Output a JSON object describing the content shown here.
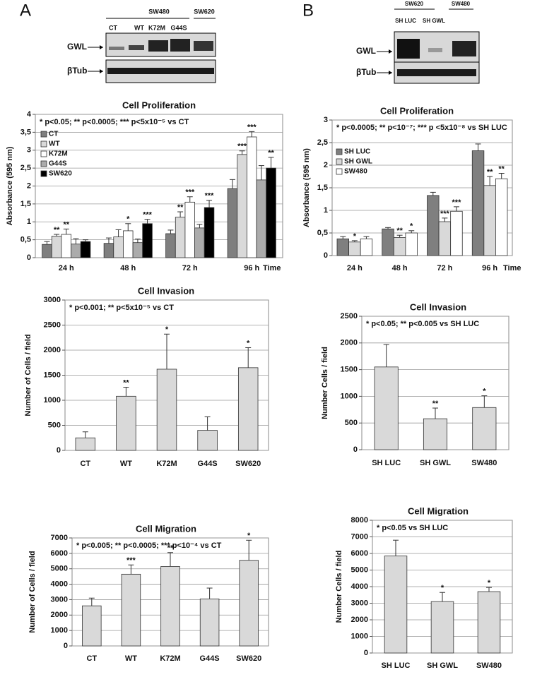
{
  "panels": [
    "A",
    "B"
  ],
  "blots": [
    {
      "groups": [
        "SW480",
        "SW620"
      ],
      "lanes": [
        "CT",
        "WT",
        "K72M",
        "G44S"
      ],
      "rows": [
        "GWL",
        "βTub"
      ]
    },
    {
      "groups": [
        "SW620",
        "SW480"
      ],
      "lanes": [
        "SH LUC",
        "SH GWL"
      ],
      "rows": [
        "GWL",
        "βTub"
      ]
    }
  ],
  "chart_data": [
    {
      "type": "bar",
      "title": "Cell Proliferation",
      "annotation": "* p<0.05; ** p<0.0005; *** p<5x10⁻⁵ vs  CT",
      "y_label": "Absorbance (595 nm)",
      "x_end_label": "Time",
      "categories": [
        "24 h",
        "48 h",
        "72 h",
        "96 h"
      ],
      "series": [
        {
          "name": "CT",
          "color": "#7f7f7f",
          "values": [
            0.37,
            0.4,
            0.67,
            1.93
          ],
          "errors": [
            0.08,
            0.15,
            0.1,
            0.25
          ],
          "sig": [
            null,
            null,
            null,
            null
          ]
        },
        {
          "name": "WT",
          "color": "#d9d9d9",
          "values": [
            0.6,
            0.58,
            1.13,
            2.88
          ],
          "errors": [
            0.05,
            0.2,
            0.15,
            0.1
          ],
          "sig": [
            "**",
            null,
            "**",
            "***"
          ]
        },
        {
          "name": "K72M",
          "color": "#ffffff",
          "values": [
            0.65,
            0.75,
            1.55,
            3.37
          ],
          "errors": [
            0.15,
            0.2,
            0.15,
            0.15
          ],
          "sig": [
            "**",
            "*",
            "***",
            "***"
          ]
        },
        {
          "name": "G44S",
          "color": "#ababab",
          "values": [
            0.38,
            0.42,
            0.83,
            2.17
          ],
          "errors": [
            0.15,
            0.1,
            0.1,
            0.4
          ],
          "sig": [
            null,
            null,
            null,
            null
          ]
        },
        {
          "name": "SW620",
          "color": "#000000",
          "values": [
            0.45,
            0.95,
            1.4,
            2.5
          ],
          "errors": [
            0.05,
            0.12,
            0.2,
            0.3
          ],
          "sig": [
            null,
            "***",
            "***",
            "**"
          ]
        }
      ],
      "ylim": [
        0,
        4
      ],
      "yticks": [
        0,
        {
          "value": 0.5,
          "label": "0,5"
        },
        1,
        {
          "value": 1.5,
          "label": "1,5"
        },
        2,
        {
          "value": 2.5,
          "label": "2,5"
        },
        3,
        {
          "value": 3.5,
          "label": "3,5"
        },
        4
      ],
      "grid": true,
      "legend": "upper left"
    },
    {
      "type": "bar",
      "title": "Cell Proliferation",
      "annotation": "* p<0.0005; ** p<10⁻⁷; *** p <5x10⁻⁸ vs  SH LUC",
      "y_label": "Absorbance (595 nm)",
      "x_end_label": "Time",
      "categories": [
        "24 h",
        "48 h",
        "72 h",
        "96 h"
      ],
      "series": [
        {
          "name": "SH LUC",
          "color": "#7f7f7f",
          "values": [
            0.37,
            0.59,
            1.33,
            2.32
          ],
          "errors": [
            0.05,
            0.03,
            0.07,
            0.15
          ],
          "sig": [
            null,
            null,
            null,
            null
          ]
        },
        {
          "name": "SH GWL",
          "color": "#d9d9d9",
          "values": [
            0.3,
            0.4,
            0.75,
            1.55
          ],
          "errors": [
            0.03,
            0.05,
            0.08,
            0.2
          ],
          "sig": [
            "*",
            "**",
            "***",
            "**"
          ]
        },
        {
          "name": "SW480",
          "color": "#ffffff",
          "values": [
            0.37,
            0.5,
            0.98,
            1.7
          ],
          "errors": [
            0.05,
            0.05,
            0.1,
            0.12
          ],
          "sig": [
            null,
            "*",
            "***",
            "**"
          ]
        }
      ],
      "ylim": [
        0,
        3
      ],
      "yticks": [
        0,
        {
          "value": 0.5,
          "label": "0,5"
        },
        1,
        {
          "value": 1.5,
          "label": "1,5"
        },
        2,
        {
          "value": 2.5,
          "label": "2,5"
        },
        3
      ],
      "grid": true,
      "legend": "upper left"
    },
    {
      "type": "bar",
      "title": "Cell Invasion",
      "annotation": "* p<0.001;  ** p<5x10⁻⁵ vs   CT",
      "y_label": "Number of Cells / field",
      "categories": [
        "CT",
        "WT",
        "K72M",
        "G44S",
        "SW620"
      ],
      "values": [
        250,
        1080,
        1620,
        400,
        1650
      ],
      "errors": [
        120,
        180,
        700,
        270,
        400
      ],
      "sig": [
        null,
        "**",
        "*",
        null,
        "*"
      ],
      "color": "#d9d9d9",
      "ylim": [
        0,
        3000
      ],
      "yticks": [
        0,
        500,
        1000,
        1500,
        2000,
        2500,
        3000
      ],
      "grid": true
    },
    {
      "type": "bar",
      "title": "Cell Invasion",
      "annotation": "* p<0.05; ** p<0.005 vs  SH LUC",
      "y_label": "Number Cells / field",
      "categories": [
        "SH LUC",
        "SH GWL",
        "SW480"
      ],
      "values": [
        1550,
        580,
        790
      ],
      "errors": [
        420,
        200,
        220
      ],
      "sig": [
        null,
        "**",
        "*"
      ],
      "color": "#d9d9d9",
      "ylim": [
        0,
        2500
      ],
      "yticks": [
        0,
        500,
        1000,
        1500,
        2000,
        2500
      ],
      "grid": true
    },
    {
      "type": "bar",
      "title": "Cell Migration",
      "annotation": "* p<0.005;  ** p<0.0005; *** p<10⁻⁴ vs   CT",
      "y_label": "Number of Cells / field",
      "categories": [
        "CT",
        "WT",
        "K72M",
        "G44S",
        "SW620"
      ],
      "values": [
        2600,
        4650,
        5150,
        3050,
        5550
      ],
      "errors": [
        500,
        600,
        900,
        700,
        1300
      ],
      "sig": [
        null,
        "***",
        "**",
        null,
        "*"
      ],
      "color": "#d9d9d9",
      "ylim": [
        0,
        7000
      ],
      "yticks": [
        0,
        1000,
        2000,
        3000,
        4000,
        5000,
        6000,
        7000
      ],
      "grid": true
    },
    {
      "type": "bar",
      "title": "Cell Migration",
      "annotation": "* p<0.05 vs  SH LUC",
      "y_label": "Number Cells / field",
      "categories": [
        "SH LUC",
        "SH GWL",
        "SW480"
      ],
      "values": [
        5850,
        3100,
        3700
      ],
      "errors": [
        950,
        550,
        250
      ],
      "sig": [
        null,
        "*",
        "*"
      ],
      "color": "#d9d9d9",
      "ylim": [
        0,
        8000
      ],
      "yticks": [
        0,
        1000,
        2000,
        3000,
        4000,
        5000,
        6000,
        7000,
        8000
      ],
      "grid": true
    }
  ]
}
